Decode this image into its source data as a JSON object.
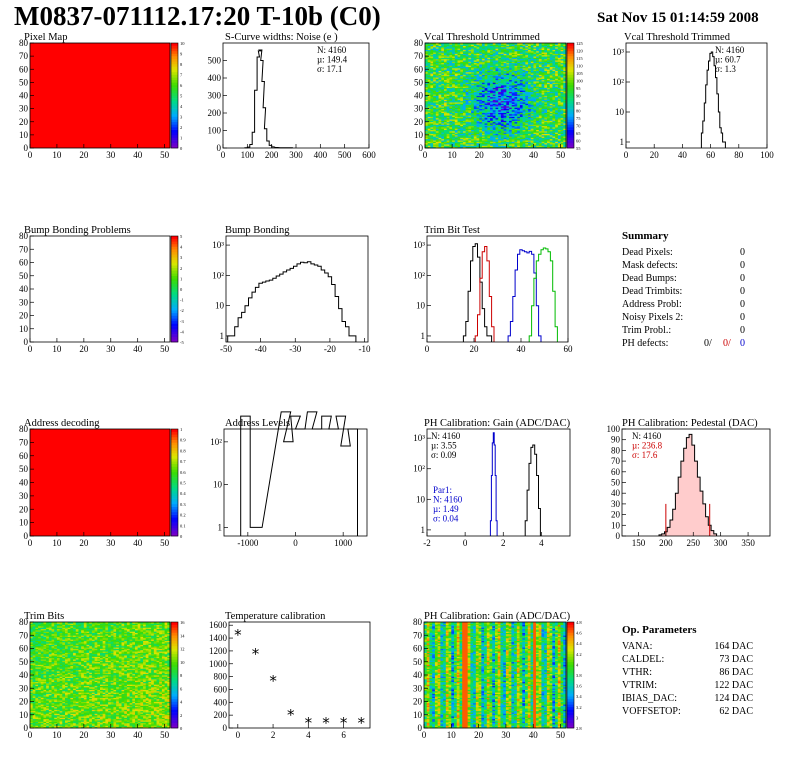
{
  "header": {
    "title": "M0837-071112.17:20 T-10b (C0)",
    "date": "Sat Nov 15 01:14:59 2008"
  },
  "panels": [
    {
      "id": "pixel-map",
      "title": "Pixel Map",
      "kind": "colormap",
      "fill": "solid-red",
      "x_ticks": [
        "0",
        "10",
        "20",
        "30",
        "40",
        "50"
      ],
      "y_ticks": [
        "0",
        "10",
        "20",
        "30",
        "40",
        "50",
        "60",
        "70",
        "80"
      ],
      "z_ticks": [
        "0",
        "1",
        "2",
        "3",
        "4",
        "5",
        "6",
        "7",
        "8",
        "9",
        "10"
      ]
    },
    {
      "id": "s-curve-widths",
      "title": "S-Curve widths: Noise (e )",
      "kind": "hist",
      "log": false,
      "x_ticks": [
        "0",
        "100",
        "200",
        "300",
        "400",
        "500",
        "600"
      ],
      "y_ticks": [
        "0",
        "100",
        "200",
        "300",
        "400",
        "500"
      ],
      "stats": [
        "N: 4160",
        "µ: 149.4",
        "σ: 17.1"
      ]
    },
    {
      "id": "vcal-untrimmed",
      "title": "Vcal Threshold Untrimmed",
      "kind": "colormap",
      "fill": "noisy-untrimmed",
      "x_ticks": [
        "0",
        "10",
        "20",
        "30",
        "40",
        "50"
      ],
      "y_ticks": [
        "0",
        "10",
        "20",
        "30",
        "40",
        "50",
        "60",
        "70",
        "80"
      ],
      "z_ticks": [
        "55",
        "60",
        "65",
        "70",
        "75",
        "80",
        "85",
        "90",
        "95",
        "100",
        "105",
        "110",
        "115",
        "120",
        "125"
      ]
    },
    {
      "id": "vcal-trimmed",
      "title": "Vcal Threshold Trimmed",
      "kind": "hist",
      "log": true,
      "x_ticks": [
        "0",
        "20",
        "40",
        "60",
        "80",
        "100"
      ],
      "y_ticks": [
        "1",
        "10",
        "10²",
        "10³"
      ],
      "stats": [
        "N: 4160",
        "µ: 60.7",
        "σ:  1.3"
      ]
    },
    {
      "id": "bump-bonding-problems",
      "title": "Bump Bonding Problems",
      "kind": "colormap",
      "fill": "blank",
      "x_ticks": [
        "0",
        "10",
        "20",
        "30",
        "40",
        "50"
      ],
      "y_ticks": [
        "0",
        "10",
        "20",
        "30",
        "40",
        "50",
        "60",
        "70",
        "80"
      ],
      "z_ticks": [
        "-5",
        "-4",
        "-3",
        "-2",
        "-1",
        "0",
        "1",
        "2",
        "3",
        "4",
        "5"
      ]
    },
    {
      "id": "bump-bonding",
      "title": "Bump Bonding",
      "kind": "hist",
      "log": true,
      "x_ticks": [
        "-50",
        "-40",
        "-30",
        "-20",
        "-10"
      ],
      "y_ticks": [
        "1",
        "10",
        "10²",
        "10³"
      ],
      "stats": []
    },
    {
      "id": "trim-bit-test",
      "title": "Trim Bit Test",
      "kind": "hist",
      "log": true,
      "x_ticks": [
        "0",
        "20",
        "40",
        "60"
      ],
      "y_ticks": [
        "1",
        "10",
        "10²",
        "10³"
      ],
      "stats": []
    },
    {
      "id": "ph-calibration-gain-1",
      "title": "PH Calibration: Gain (ADC/DAC)",
      "kind": "hist",
      "log": true,
      "x_ticks": [
        "-2",
        "0",
        "2",
        "4"
      ],
      "y_ticks": [
        "1",
        "10",
        "10²",
        "10³"
      ],
      "stats": [
        "N: 4160",
        "µ: 3.55",
        "σ: 0.09"
      ],
      "stats2": [
        "Par1:",
        "N: 4160",
        "µ: 1.49",
        "σ: 0.04"
      ]
    },
    {
      "id": "address-decoding",
      "title": "Address decoding",
      "kind": "colormap",
      "fill": "solid-red",
      "x_ticks": [
        "0",
        "10",
        "20",
        "30",
        "40",
        "50"
      ],
      "y_ticks": [
        "0",
        "10",
        "20",
        "30",
        "40",
        "50",
        "60",
        "70",
        "80"
      ],
      "z_ticks": [
        "0",
        "0.1",
        "0.2",
        "0.3",
        "0.4",
        "0.5",
        "0.6",
        "0.7",
        "0.8",
        "0.9",
        "1"
      ]
    },
    {
      "id": "address-levels",
      "title": "Address Levels",
      "kind": "hist",
      "log": true,
      "x_ticks": [
        "-1000",
        "0",
        "1000"
      ],
      "y_ticks": [
        "1",
        "10",
        "10²"
      ],
      "stats": []
    },
    {
      "id": "ph-calibration-pedestal",
      "title": "PH Calibration: Pedestal (DAC)",
      "kind": "hist",
      "log": false,
      "x_ticks": [
        "150",
        "200",
        "250",
        "300",
        "350"
      ],
      "y_ticks": [
        "0",
        "10",
        "20",
        "30",
        "40",
        "50",
        "60",
        "70",
        "80",
        "90",
        "100"
      ],
      "stats": [
        "N: 4160",
        "µ: 236.8",
        "σ: 17.6"
      ]
    },
    {
      "id": "trim-bits",
      "title": "Trim Bits",
      "kind": "colormap",
      "fill": "noisy-trim",
      "x_ticks": [
        "0",
        "10",
        "20",
        "30",
        "40",
        "50"
      ],
      "y_ticks": [
        "0",
        "10",
        "20",
        "30",
        "40",
        "50",
        "60",
        "70",
        "80"
      ],
      "z_ticks": [
        "0",
        "2",
        "4",
        "6",
        "8",
        "10",
        "12",
        "14",
        "16"
      ]
    },
    {
      "id": "temperature-calibration",
      "title": "Temperature calibration",
      "kind": "scatter",
      "log": false,
      "x_ticks": [
        "0",
        "2",
        "4",
        "6"
      ],
      "y_ticks": [
        "0",
        "200",
        "400",
        "600",
        "800",
        "1000",
        "1200",
        "1400",
        "1600"
      ],
      "stats": []
    },
    {
      "id": "ph-calibration-gain-2",
      "title": "PH Calibration: Gain (ADC/DAC)",
      "kind": "colormap",
      "fill": "noisy-gain",
      "x_ticks": [
        "0",
        "10",
        "20",
        "30",
        "40",
        "50"
      ],
      "y_ticks": [
        "0",
        "10",
        "20",
        "30",
        "40",
        "50",
        "60",
        "70",
        "80"
      ],
      "z_ticks": [
        "2.8",
        "3",
        "3.2",
        "3.4",
        "3.6",
        "3.8",
        "4",
        "4.2",
        "4.4",
        "4.6",
        "4.8"
      ]
    }
  ],
  "summary": {
    "title": "Summary",
    "rows": [
      {
        "label": "Dead Pixels:",
        "value": "0"
      },
      {
        "label": "Mask defects:",
        "value": "0"
      },
      {
        "label": "Dead Bumps:",
        "value": "0"
      },
      {
        "label": "Dead Trimbits:",
        "value": "0"
      },
      {
        "label": "Address Probl:",
        "value": "0"
      },
      {
        "label": "Noisy Pixels 2:",
        "value": "0"
      },
      {
        "label": "Trim Probl.:",
        "value": "0"
      }
    ],
    "ph_defects": {
      "label": "PH defects:",
      "values": [
        "0/",
        "0/",
        "0"
      ],
      "colors": [
        "#000000",
        "#cc0000",
        "#0000cc"
      ]
    }
  },
  "op_params": {
    "title": "Op. Parameters",
    "rows": [
      {
        "label": "VANA:",
        "value": "164 DAC"
      },
      {
        "label": "CALDEL:",
        "value": "73 DAC"
      },
      {
        "label": "VTHR:",
        "value": "86 DAC"
      },
      {
        "label": "VTRIM:",
        "value": "122 DAC"
      },
      {
        "label": "IBIAS_DAC:",
        "value": "124 DAC"
      },
      {
        "label": "VOFFSETOP:",
        "value": "62 DAC"
      }
    ]
  },
  "chart_data": [
    {
      "type": "heatmap",
      "panel": "pixel-map",
      "xlim": [
        0,
        52
      ],
      "ylim": [
        0,
        80
      ],
      "zlim": [
        0,
        10
      ],
      "description_value": "all pixels 10"
    },
    {
      "type": "hist",
      "panel": "s-curve-widths",
      "xlim": [
        0,
        600
      ],
      "ylim": [
        0,
        600
      ],
      "x": [
        95,
        105,
        115,
        125,
        135,
        145,
        150,
        155,
        160,
        165,
        170,
        175,
        185,
        195,
        205,
        220,
        240,
        260,
        280
      ],
      "values": [
        2,
        5,
        20,
        90,
        330,
        520,
        555,
        560,
        500,
        380,
        230,
        110,
        40,
        15,
        6,
        3,
        2,
        1,
        1
      ]
    },
    {
      "type": "heatmap",
      "panel": "vcal-untrimmed",
      "xlim": [
        0,
        52
      ],
      "ylim": [
        0,
        80
      ],
      "zlim": [
        55,
        125
      ]
    },
    {
      "type": "hist",
      "panel": "vcal-trimmed",
      "log_y": true,
      "xlim": [
        0,
        100
      ],
      "x": [
        54,
        55,
        56,
        57,
        58,
        59,
        60,
        61,
        62,
        63,
        64,
        65,
        66,
        67,
        68,
        69,
        70
      ],
      "values": [
        2,
        5,
        20,
        80,
        250,
        500,
        900,
        1000,
        700,
        350,
        140,
        40,
        10,
        3,
        2,
        1,
        1
      ]
    },
    {
      "type": "heatmap",
      "panel": "bump-bonding-problems",
      "xlim": [
        0,
        52
      ],
      "ylim": [
        0,
        80
      ],
      "zlim": [
        -5,
        5
      ]
    },
    {
      "type": "hist",
      "panel": "bump-bonding",
      "log_y": true,
      "xlim": [
        -50,
        -9
      ],
      "x": [
        -49,
        -48,
        -47,
        -46,
        -45,
        -44,
        -43,
        -42,
        -41,
        -40,
        -39,
        -38,
        -37,
        -36,
        -35,
        -34,
        -33,
        -32,
        -31,
        -30,
        -29,
        -28,
        -27,
        -26,
        -25,
        -24,
        -23,
        -22,
        -21,
        -20,
        -19,
        -18,
        -17,
        -16,
        -15,
        -14,
        -13
      ],
      "values": [
        1,
        1,
        2,
        4,
        6,
        10,
        18,
        28,
        40,
        55,
        60,
        65,
        70,
        80,
        95,
        110,
        130,
        150,
        170,
        200,
        240,
        270,
        260,
        280,
        240,
        220,
        200,
        150,
        120,
        90,
        50,
        20,
        8,
        3,
        2,
        1,
        1
      ]
    },
    {
      "type": "hist",
      "panel": "trim-bit-test",
      "log_y": true,
      "xlim": [
        0,
        60
      ],
      "series": [
        {
          "name": "",
          "color": "#000000",
          "x": [
            16,
            17,
            18,
            19,
            20,
            21,
            22,
            23,
            24,
            25,
            26,
            27
          ],
          "values": [
            1,
            3,
            30,
            300,
            900,
            1100,
            400,
            60,
            8,
            2,
            1,
            1
          ]
        },
        {
          "name": "",
          "color": "#cc0000",
          "x": [
            21,
            22,
            23,
            24,
            25,
            26,
            27,
            28
          ],
          "values": [
            1,
            5,
            80,
            600,
            900,
            300,
            20,
            2
          ]
        },
        {
          "name": "",
          "color": "#0000cc",
          "x": [
            35,
            36,
            37,
            38,
            39,
            40,
            41,
            42,
            43,
            44,
            45,
            46,
            47,
            48
          ],
          "values": [
            1,
            3,
            20,
            150,
            500,
            700,
            650,
            600,
            550,
            620,
            500,
            120,
            10,
            1
          ]
        },
        {
          "name": "",
          "color": "#00bb00",
          "x": [
            44,
            45,
            46,
            47,
            48,
            49,
            50,
            51,
            52,
            53,
            54,
            55
          ],
          "values": [
            1,
            10,
            80,
            300,
            500,
            700,
            800,
            750,
            600,
            300,
            30,
            2
          ]
        }
      ]
    },
    {
      "type": "hist",
      "panel": "ph-calibration-gain-1",
      "log_y": true,
      "xlim": [
        -2,
        5.5
      ],
      "series": [
        {
          "name": "",
          "color": "#000000",
          "x": [
            3.2,
            3.3,
            3.4,
            3.5,
            3.6,
            3.7,
            3.8,
            3.9
          ],
          "values": [
            2,
            20,
            150,
            500,
            600,
            300,
            60,
            5
          ]
        },
        {
          "name": "Par1",
          "color": "#0000cc",
          "x": [
            1.35,
            1.4,
            1.45,
            1.5,
            1.55,
            1.6,
            1.65
          ],
          "values": [
            2,
            60,
            700,
            1500,
            600,
            60,
            2
          ]
        }
      ]
    },
    {
      "type": "heatmap",
      "panel": "address-decoding",
      "xlim": [
        0,
        52
      ],
      "ylim": [
        0,
        80
      ],
      "zlim": [
        0,
        1
      ]
    },
    {
      "type": "hist",
      "panel": "address-levels",
      "log_y": true,
      "xlim": [
        -1500,
        1500
      ],
      "x": [
        -1050,
        -850,
        -800,
        -200,
        -150,
        0,
        100,
        350,
        450,
        650,
        800,
        950,
        1050,
        1200
      ],
      "values": [
        400,
        1,
        1,
        500,
        100,
        400,
        200,
        500,
        200,
        400,
        200,
        400,
        80,
        200
      ]
    },
    {
      "type": "hist",
      "panel": "ph-calibration-pedestal",
      "xlim": [
        120,
        390
      ],
      "ylim": [
        0,
        100
      ],
      "x": [
        190,
        195,
        200,
        205,
        210,
        215,
        220,
        225,
        230,
        235,
        240,
        245,
        250,
        255,
        260,
        265,
        270,
        275,
        280,
        285,
        290
      ],
      "values": [
        1,
        2,
        4,
        8,
        15,
        25,
        40,
        55,
        70,
        82,
        92,
        95,
        85,
        70,
        55,
        42,
        30,
        18,
        10,
        5,
        2
      ]
    },
    {
      "type": "heatmap",
      "panel": "trim-bits",
      "xlim": [
        0,
        52
      ],
      "ylim": [
        0,
        80
      ],
      "zlim": [
        0,
        16
      ]
    },
    {
      "type": "scatter",
      "panel": "temperature-calibration",
      "xlim": [
        -0.5,
        7.5
      ],
      "ylim": [
        0,
        1650
      ],
      "x": [
        0,
        1,
        2,
        3,
        4,
        5,
        6,
        7
      ],
      "values": [
        1450,
        1150,
        730,
        200,
        80,
        80,
        80,
        80
      ]
    },
    {
      "type": "heatmap",
      "panel": "ph-calibration-gain-2",
      "xlim": [
        0,
        52
      ],
      "ylim": [
        0,
        80
      ],
      "zlim": [
        2.8,
        4.8
      ]
    }
  ]
}
